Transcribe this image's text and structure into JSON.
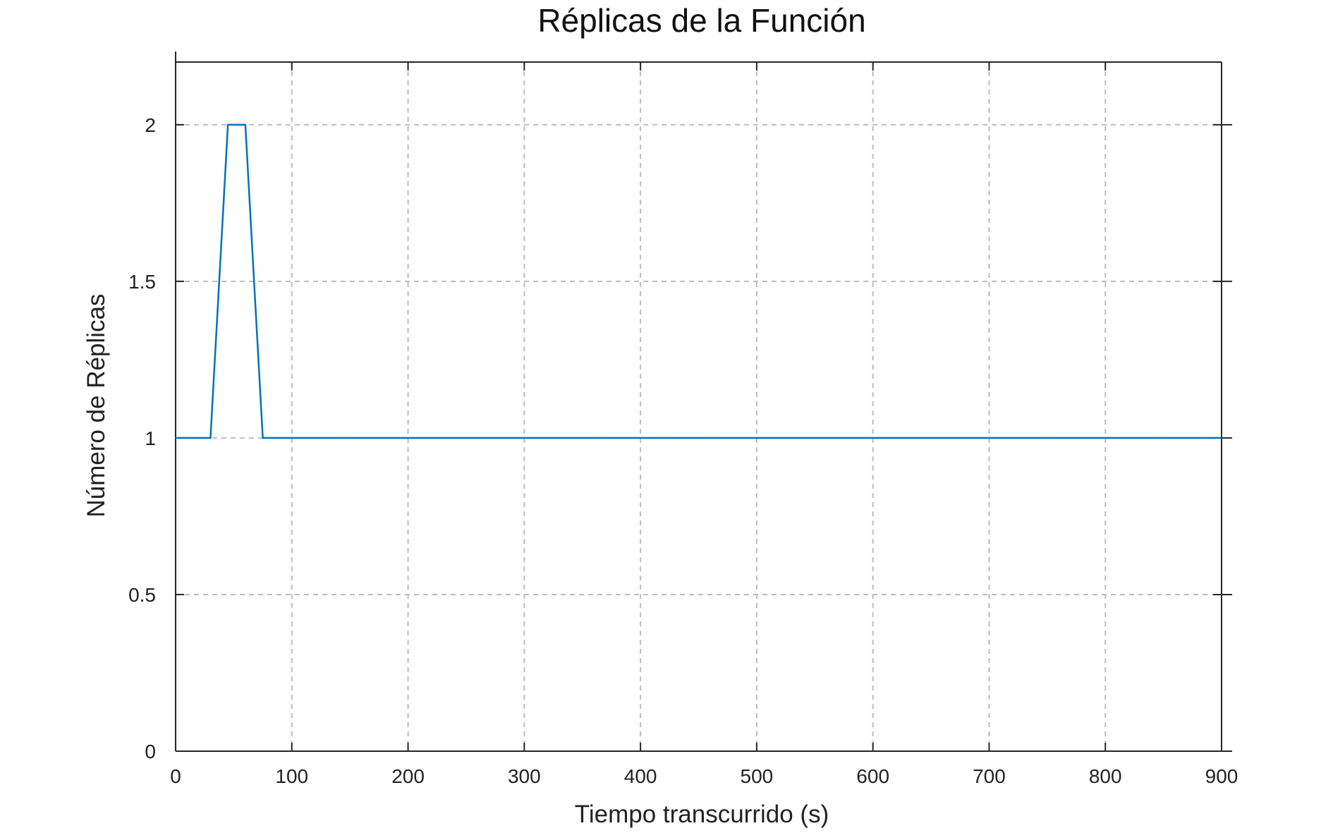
{
  "chart_data": {
    "type": "line",
    "title": "Réplicas de la Función",
    "xlabel": "Tiempo transcurrido (s)",
    "ylabel": "Número de Réplicas",
    "xlim": [
      0,
      900
    ],
    "ylim": [
      0,
      2.2
    ],
    "x_ticks": [
      0,
      100,
      200,
      300,
      400,
      500,
      600,
      700,
      800,
      900
    ],
    "x_tick_labels": [
      "0",
      "100",
      "200",
      "300",
      "400",
      "500",
      "600",
      "700",
      "800",
      "900"
    ],
    "y_ticks": [
      0,
      0.5,
      1,
      1.5,
      2
    ],
    "y_tick_labels": [
      "0",
      "0.5",
      "1",
      "1.5",
      "2"
    ],
    "grid": true,
    "box": true,
    "series": [
      {
        "color": "#0072BD",
        "x": [
          0,
          30,
          45,
          60,
          75,
          900
        ],
        "y": [
          1,
          1,
          2,
          2,
          1,
          1
        ]
      }
    ]
  }
}
